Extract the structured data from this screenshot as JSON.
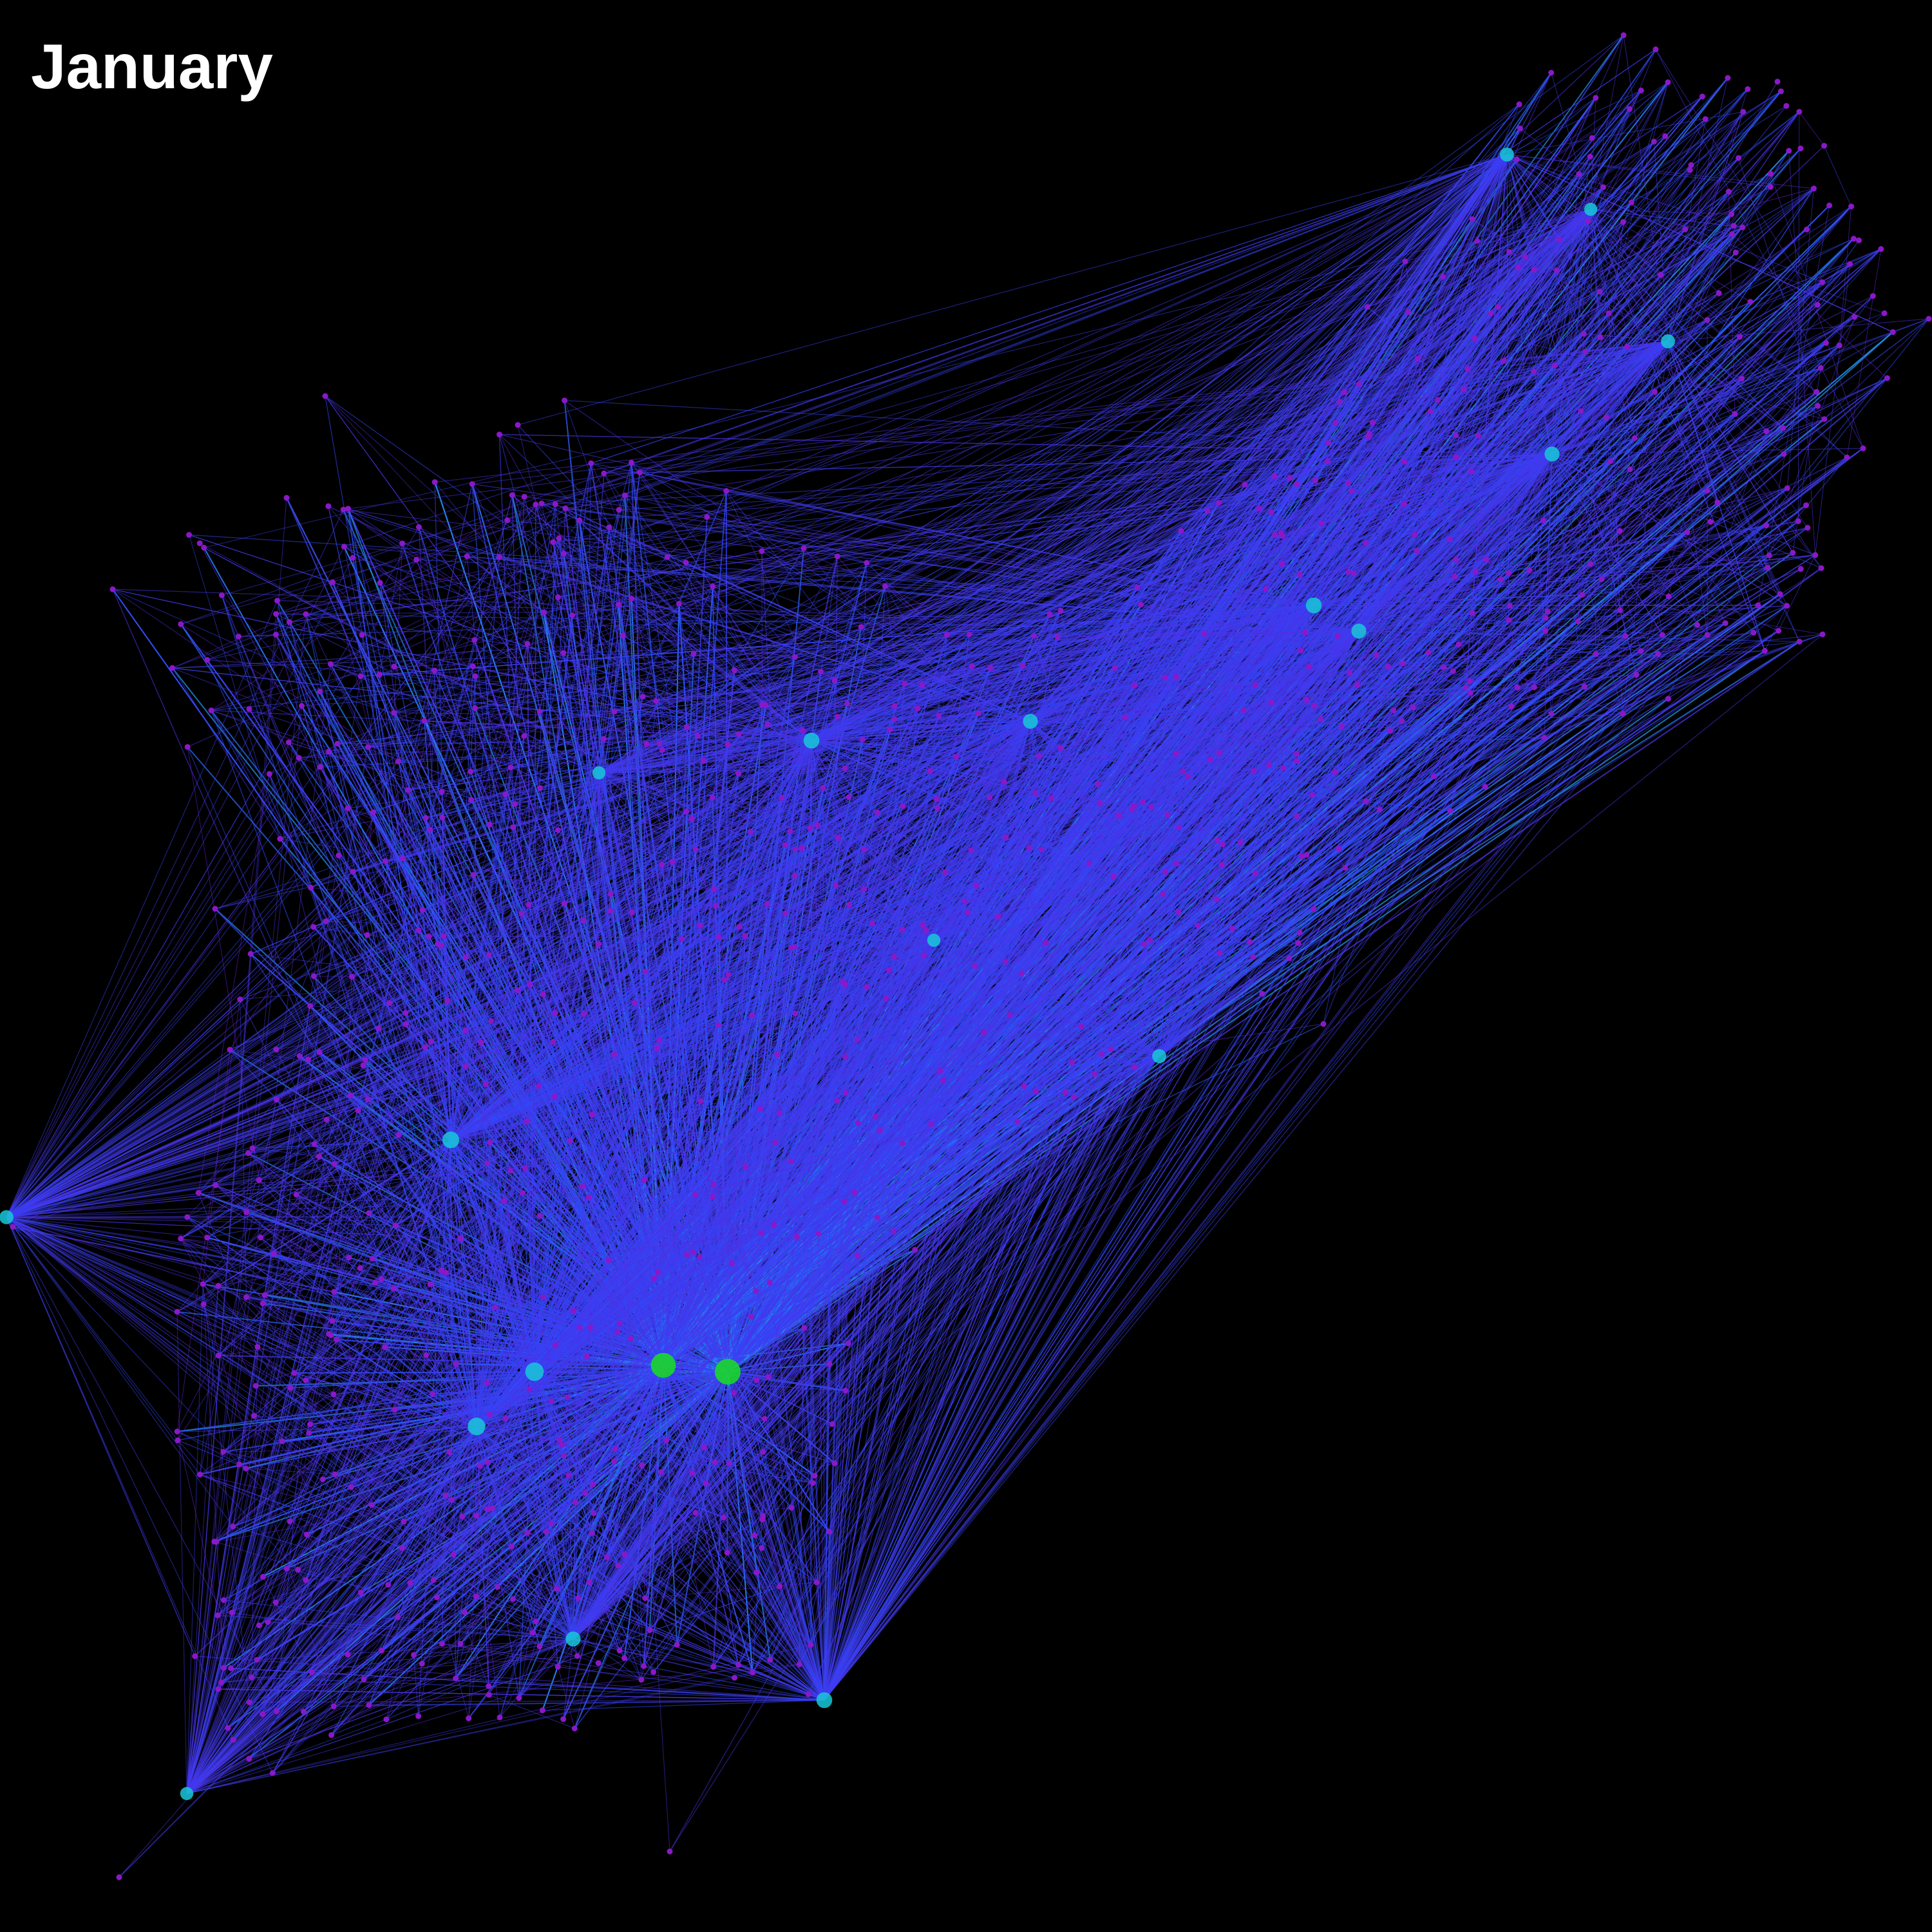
{
  "title": "January",
  "colors": {
    "background": "#000000",
    "edge_low": "#7a12c8",
    "edge_mid": "#2a4cff",
    "edge_high": "#18c8d8",
    "hub_peak": "#18e020",
    "node": "#8a18c8"
  }
}
